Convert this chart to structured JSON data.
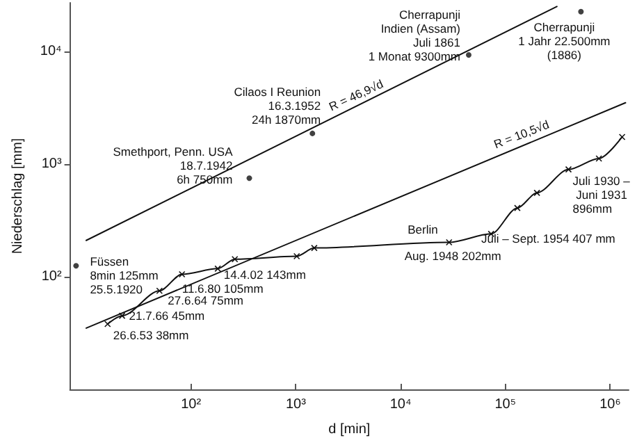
{
  "chart_data": {
    "type": "line",
    "xlabel": "d [min]",
    "ylabel": "Niederschlag [mm]",
    "log": "xy",
    "grid": false,
    "xlim": [
      7,
      1500000
    ],
    "ylim": [
      10,
      27000
    ],
    "xticks": [
      {
        "value": 100,
        "label": "10²"
      },
      {
        "value": 1000,
        "label": "10³"
      },
      {
        "value": 10000,
        "label": "10⁴"
      },
      {
        "value": 100000,
        "label": "10⁵"
      },
      {
        "value": 1000000,
        "label": "10⁶"
      }
    ],
    "yticks": [
      {
        "value": 100,
        "label": "10²"
      },
      {
        "value": 1000,
        "label": "10³"
      },
      {
        "value": 10000,
        "label": "10⁴"
      }
    ],
    "series": [
      {
        "color": "#111111",
        "marker": "none",
        "x": [
          10,
          310000
        ],
        "values": [
          210,
          25000
        ]
      },
      {
        "color": "#111111",
        "marker": "none",
        "x": [
          10,
          1400000
        ],
        "values": [
          35,
          3500
        ]
      },
      {
        "type": "scatter",
        "color": "#111111",
        "marker": "circle",
        "x": [
          8,
          360,
          1440,
          44640,
          525600
        ],
        "values": [
          125,
          750,
          1870,
          9300,
          22500
        ]
      },
      {
        "color": "#111111",
        "marker": "cross",
        "x": [
          16,
          22,
          50,
          82,
          180,
          262,
          1020,
          1500,
          29000,
          73000,
          130000,
          200000,
          400000,
          780000,
          1300000
        ],
        "values": [
          38,
          45,
          75,
          105,
          118,
          143,
          152,
          180,
          202,
          240,
          407,
          555,
          896,
          1120,
          1740
        ]
      }
    ],
    "annotations": [
      {
        "text": "Füssen\n8min 125mm\n25.5.1920",
        "x": 8,
        "y": 125
      },
      {
        "text": "Smethport, Penn. USA\n18.7.1942\n6h 750mm",
        "x": 360,
        "y": 750
      },
      {
        "text": "Cilaos I Reunion\n16.3.1952\n24h 1870mm",
        "x": 1440,
        "y": 1870
      },
      {
        "text": "Cherrapunji\nIndien (Assam)\nJuli 1861\n1 Monat 9300mm",
        "x": 44640,
        "y": 9300
      },
      {
        "text": "Cherrapunji\n1 Jahr 22.500mm\n(1886)",
        "x": 525600,
        "y": 22500
      },
      {
        "text": "Berlin",
        "x": 29000,
        "y": 202
      },
      {
        "text": "Aug. 1948 202mm",
        "x": 29000,
        "y": 202
      },
      {
        "text": "Juli – Sept. 1954 407 mm",
        "x": 130000,
        "y": 407
      },
      {
        "text": "Juli 1930 – Juni 1931 896mm",
        "x": 400000,
        "y": 896
      },
      {
        "text": "14.4.02 143mm",
        "x": 262,
        "y": 143
      },
      {
        "text": "11.6.80 105mm",
        "x": 82,
        "y": 105
      },
      {
        "text": "27.6.64 75mm",
        "x": 50,
        "y": 75
      },
      {
        "text": "21.7.66 45mm",
        "x": 22,
        "y": 45
      },
      {
        "text": "26.6.53 38mm",
        "x": 16,
        "y": 38
      },
      {
        "text": "R = 46,9√d",
        "x": 4000,
        "y": 3300
      },
      {
        "text": "R = 10,5√d",
        "x": 150000,
        "y": 1480
      }
    ]
  }
}
